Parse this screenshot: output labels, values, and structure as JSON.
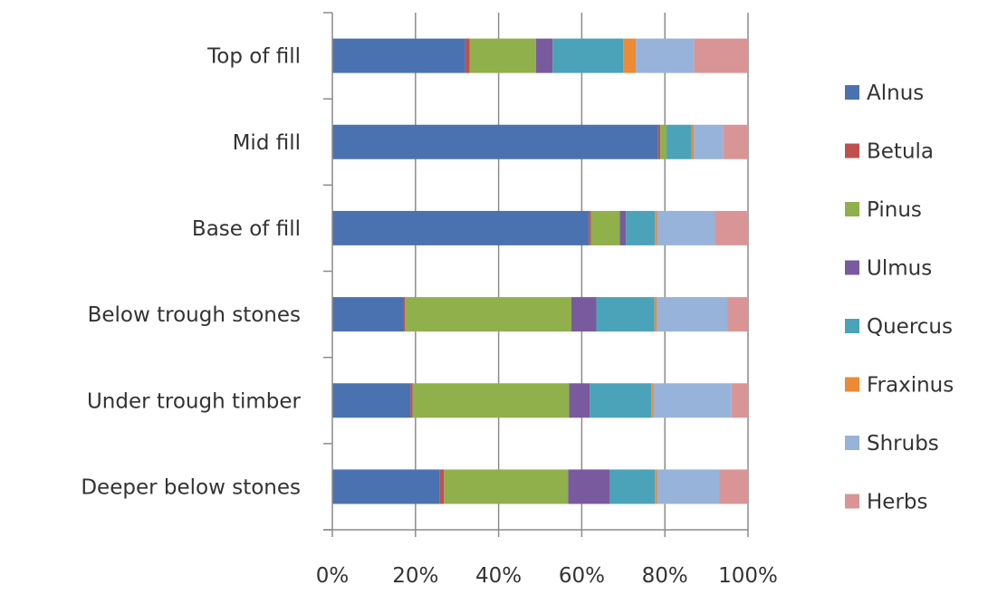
{
  "chart_data": {
    "type": "bar",
    "orientation": "horizontal",
    "stacked": "percent",
    "title": "",
    "xlabel": "",
    "ylabel": "",
    "xlim": [
      0,
      100
    ],
    "x_ticks": [
      "0%",
      "20%",
      "40%",
      "60%",
      "80%",
      "100%"
    ],
    "grid": "vertical",
    "legend_position": "right",
    "categories": [
      "Top of fill",
      "Mid fill",
      "Base of fill",
      "Below trough stones",
      "Under trough timber",
      "Deeper below stones"
    ],
    "series": [
      {
        "name": "Alnus",
        "color": "#4a72b0",
        "values": [
          32,
          78,
          62,
          17,
          19,
          26
        ]
      },
      {
        "name": "Betula",
        "color": "#c0504d",
        "values": [
          1,
          0.5,
          0.5,
          0.5,
          0.5,
          1
        ]
      },
      {
        "name": "Pinus",
        "color": "#8fb04b",
        "values": [
          16,
          1.5,
          7,
          40,
          38,
          30
        ]
      },
      {
        "name": "Ulmus",
        "color": "#7a5a9f",
        "values": [
          4,
          0,
          1.5,
          6,
          5,
          10
        ]
      },
      {
        "name": "Quercus",
        "color": "#4aa3b8",
        "values": [
          17,
          6,
          7,
          14,
          15,
          11
        ]
      },
      {
        "name": "Fraxinus",
        "color": "#ec8a35",
        "values": [
          3,
          0.5,
          0.5,
          0.5,
          0.5,
          0.5
        ]
      },
      {
        "name": "Shrubs",
        "color": "#97b3da",
        "values": [
          14,
          7,
          14,
          17,
          19,
          15
        ]
      },
      {
        "name": "Herbs",
        "color": "#d99595",
        "values": [
          13,
          6,
          8,
          5,
          4,
          7
        ]
      }
    ]
  }
}
